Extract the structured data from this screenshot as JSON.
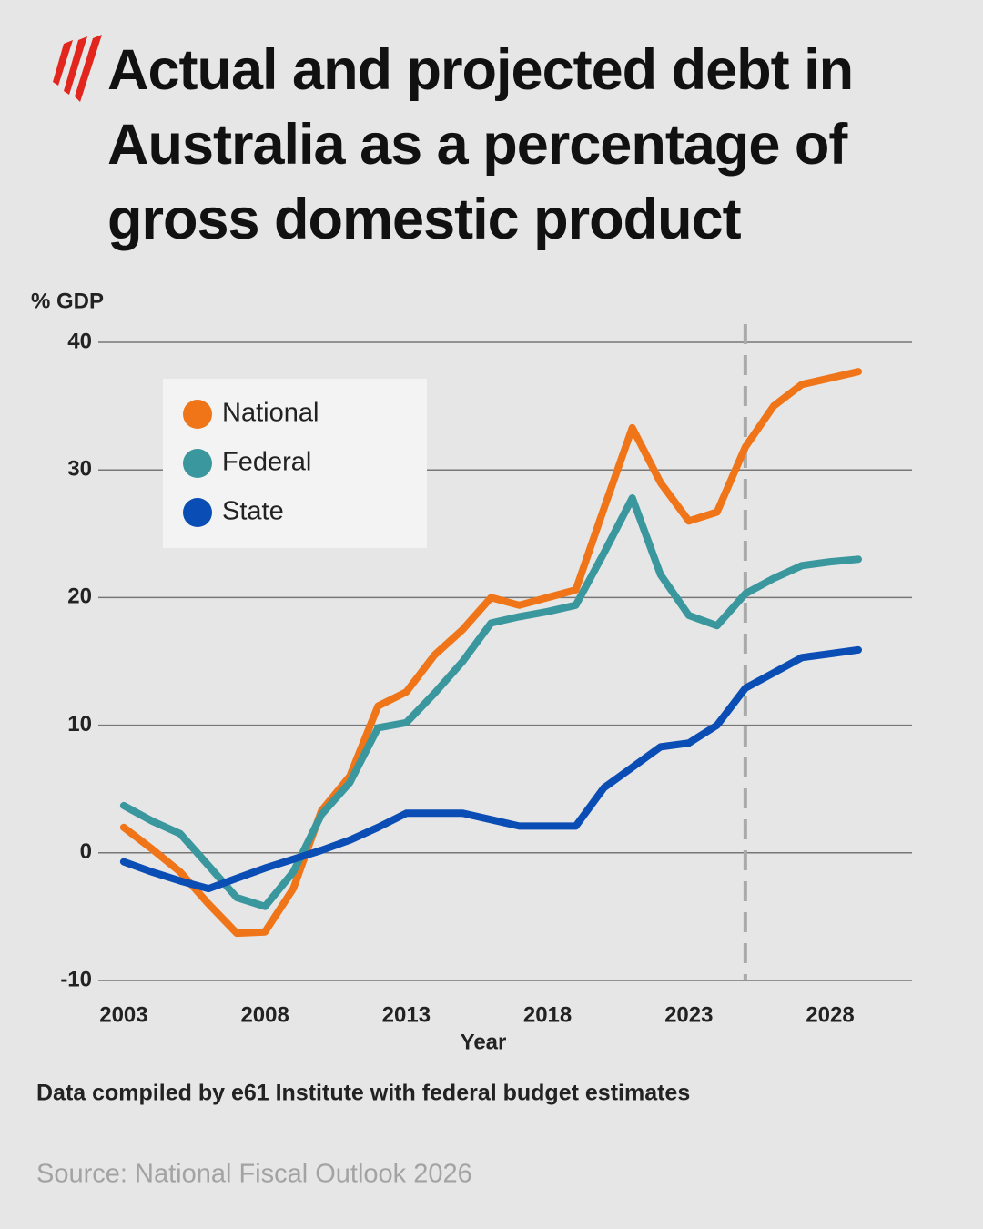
{
  "chart_data": {
    "type": "line",
    "title": "Actual and projected debt in Australia as a percentage of gross domestic product",
    "y_axis_label": "% GDP",
    "x_axis_label": "Year",
    "note": "Data compiled by e61 Institute with federal budget estimates",
    "source": "Source: National Fiscal Outlook 2026",
    "x": [
      2003,
      2004,
      2005,
      2006,
      2007,
      2008,
      2009,
      2010,
      2011,
      2012,
      2013,
      2014,
      2015,
      2016,
      2017,
      2018,
      2019,
      2020,
      2021,
      2022,
      2023,
      2024,
      2025,
      2026,
      2027,
      2028,
      2029
    ],
    "series": [
      {
        "name": "National",
        "color": "#f07518",
        "values": [
          2,
          0.3,
          -1.5,
          -4,
          -6.3,
          -6.2,
          -2.8,
          3.3,
          6,
          11.5,
          12.6,
          15.5,
          17.5,
          20,
          19.4,
          20,
          20.6,
          27,
          33.3,
          29,
          26,
          26.7,
          31.8,
          35,
          36.7,
          37.2,
          37.7
        ]
      },
      {
        "name": "Federal",
        "color": "#3a979e",
        "values": [
          3.7,
          2.5,
          1.5,
          -1,
          -3.5,
          -4.2,
          -1.5,
          3,
          5.5,
          9.8,
          10.2,
          12.5,
          15,
          18,
          18.5,
          18.9,
          19.4,
          23.5,
          27.8,
          21.8,
          18.6,
          17.8,
          20.3,
          21.5,
          22.5,
          22.8,
          23
        ]
      },
      {
        "name": "State",
        "color": "#0a4db5",
        "values": [
          -0.7,
          -1.5,
          -2.2,
          -2.8,
          -2,
          -1.2,
          -0.5,
          0.2,
          1,
          2,
          3.1,
          3.1,
          3.1,
          2.6,
          2.1,
          2.1,
          2.1,
          5.1,
          6.7,
          8.3,
          8.6,
          10,
          12.9,
          14.1,
          15.3,
          15.6,
          15.9
        ]
      }
    ],
    "xlim": [
      2002.1,
      2030.9
    ],
    "xticks": [
      2003,
      2008,
      2013,
      2018,
      2023,
      2028
    ],
    "ylim": [
      -10,
      40
    ],
    "yticks": [
      -10,
      0,
      10,
      20,
      30,
      40
    ],
    "grid": true,
    "projection_start": 2025,
    "legend": "upper left"
  }
}
